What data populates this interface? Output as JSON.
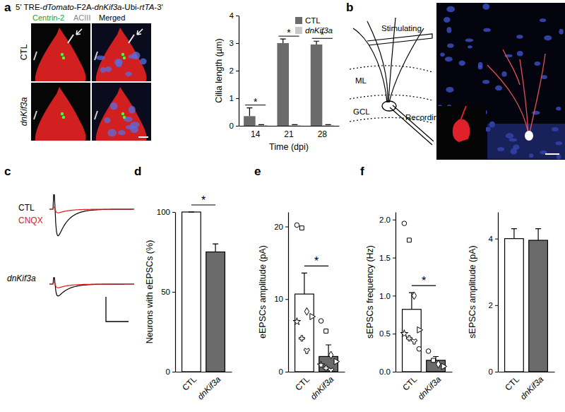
{
  "panels": {
    "labels": [
      "a",
      "b",
      "c",
      "d",
      "e",
      "f"
    ]
  },
  "panel_a": {
    "construct": [
      "5' TRE-",
      "dTomato",
      "-F2A-",
      "dnKif3a",
      "-Ubi-",
      "rtTA",
      "-3'"
    ],
    "channel_labels": [
      "Centrin-2",
      "ACIII",
      "Merged"
    ],
    "row_labels": [
      "CTL",
      "dnKif3a"
    ]
  },
  "panel_b": {
    "labels": [
      "Stimulating",
      "ML",
      "GCL",
      "Recording"
    ]
  },
  "panel_c": {
    "labels": [
      "CTL",
      "CNQX",
      "dnKif3a"
    ]
  },
  "chart_data": [
    {
      "type": "bar",
      "x_label": "Time (dpi)",
      "y_label": "Cilia length (µm)",
      "categories": [
        "14",
        "21",
        "28"
      ],
      "series": [
        {
          "name": "CTL",
          "color": "#6b6b6b",
          "values": [
            0.35,
            3.0,
            2.95
          ],
          "errors": [
            0.3,
            0.15,
            0.12
          ]
        },
        {
          "name": "dnKif3a",
          "color": "#c9c9c9",
          "values": [
            0.03,
            0.03,
            0.03
          ],
          "errors": [
            0.01,
            0.01,
            0.01
          ]
        }
      ],
      "ylim": [
        0,
        4
      ],
      "yticks": [
        0,
        1,
        2,
        3,
        4
      ],
      "legend": "upper right",
      "significance": [
        "*",
        "*",
        "*"
      ]
    },
    {
      "type": "bar",
      "y_label": "Neurons with eEPSCs (%)",
      "categories": [
        "CTL",
        "dnKif3a"
      ],
      "values": [
        100,
        75
      ],
      "errors": [
        0,
        5
      ],
      "colors": [
        "#ffffff",
        "#6b6b6b"
      ],
      "ylim": [
        0,
        100
      ],
      "yticks": [
        0,
        50,
        100
      ],
      "significance": [
        "*"
      ]
    },
    {
      "type": "bar",
      "y_label": "eEPSCs amplitude (pA)",
      "categories": [
        "CTL",
        "dnKif3a"
      ],
      "values": [
        10.7,
        2.1
      ],
      "errors": [
        2.9,
        1.6
      ],
      "colors": [
        "#ffffff",
        "#6b6b6b"
      ],
      "points": [
        [
          20.2,
          19.8,
          8.3,
          7.6,
          6.9,
          4.6,
          2.9
        ],
        [
          7.0,
          5.6,
          2.3,
          1.4,
          0.9,
          0.5,
          0.2
        ]
      ],
      "ylim": [
        0,
        22
      ],
      "yticks": [
        0,
        10,
        20
      ],
      "significance": [
        "*"
      ]
    },
    {
      "type": "bar",
      "y_label": "sEPSCs frequency (Hz)",
      "categories": [
        "CTL",
        "dnKif3a"
      ],
      "values": [
        0.82,
        0.15
      ],
      "errors": [
        0.22,
        0.05
      ],
      "colors": [
        "#ffffff",
        "#6b6b6b"
      ],
      "points": [
        [
          1.95,
          1.73,
          1.0,
          0.55,
          0.5,
          0.44,
          0.4,
          0.3
        ],
        [
          0.27,
          0.15,
          0.1,
          0.07
        ]
      ],
      "ylim": [
        0,
        2.1
      ],
      "yticks": [
        {
          "value": 0,
          "label": "0.0"
        },
        {
          "value": 0.5,
          "label": "0.5"
        },
        {
          "value": 1,
          "label": "1.0"
        },
        {
          "value": 1.5,
          "label": "1.5"
        },
        {
          "value": 2,
          "label": "2.0"
        }
      ],
      "significance": [
        "*"
      ]
    },
    {
      "type": "bar",
      "y_label": "sEPSCs amplitude (pA)",
      "categories": [
        "CTL",
        "dnKif3a"
      ],
      "values": [
        4.0,
        3.95
      ],
      "errors": [
        0.3,
        0.35
      ],
      "colors": [
        "#ffffff",
        "#6b6b6b"
      ],
      "ylim": [
        0,
        4.8
      ],
      "yticks": [
        0,
        2,
        4
      ]
    }
  ]
}
